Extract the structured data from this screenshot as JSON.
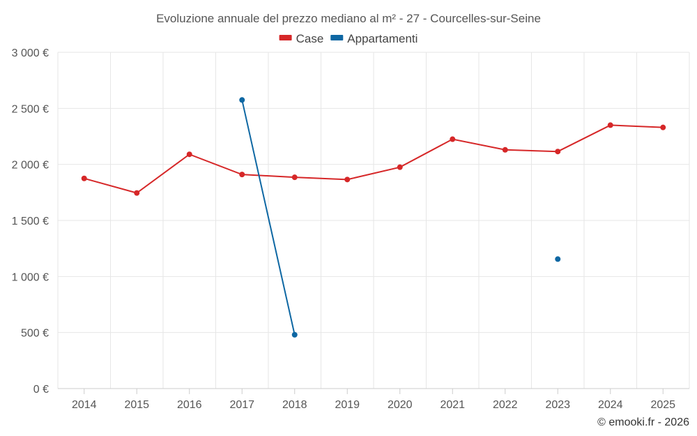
{
  "chart_data": {
    "type": "line",
    "title": "Evoluzione annuale del prezzo mediano al m² - 27 - Courcelles-sur-Seine",
    "categories": [
      "2014",
      "2015",
      "2016",
      "2017",
      "2018",
      "2019",
      "2020",
      "2021",
      "2022",
      "2023",
      "2024",
      "2025"
    ],
    "y_tick_labels": [
      "0 €",
      "500 €",
      "1 000 €",
      "1 500 €",
      "2 000 €",
      "2 500 €",
      "3 000 €"
    ],
    "y_ticks": [
      0,
      500,
      1000,
      1500,
      2000,
      2500,
      3000
    ],
    "ylim": [
      0,
      3000
    ],
    "grid": true,
    "legend_position": "top-center",
    "series": [
      {
        "name": "Case",
        "color": "#d62728",
        "values": [
          1875,
          1745,
          2090,
          1910,
          1885,
          1865,
          1975,
          2225,
          2130,
          2115,
          2350,
          2330
        ]
      },
      {
        "name": "Appartamenti",
        "color": "#0e67a3",
        "values": [
          null,
          null,
          null,
          2575,
          480,
          null,
          null,
          null,
          null,
          1155,
          null,
          null
        ]
      }
    ],
    "credit": "© emooki.fr - 2026"
  }
}
